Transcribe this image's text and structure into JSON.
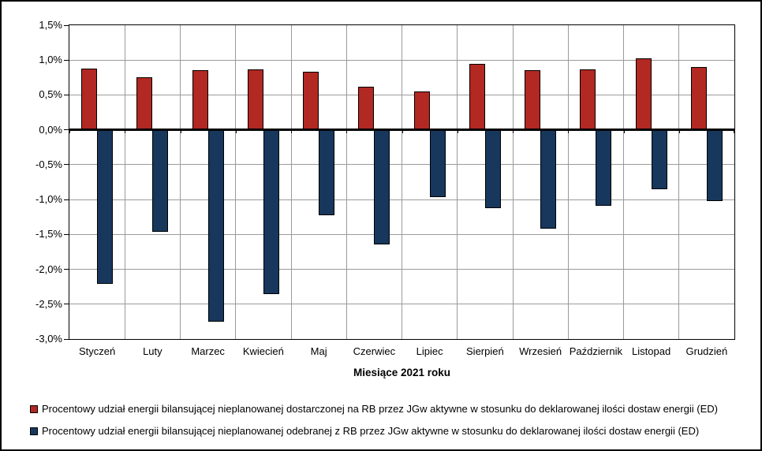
{
  "chart_data": {
    "type": "bar",
    "title": "",
    "xlabel": "Miesiące 2021 roku",
    "ylabel": "",
    "categories": [
      "Styczeń",
      "Luty",
      "Marzec",
      "Kwiecień",
      "Maj",
      "Czerwiec",
      "Lipiec",
      "Sierpień",
      "Wrzesień",
      "Październik",
      "Listopad",
      "Grudzień"
    ],
    "series": [
      {
        "name": "Procentowy udział energii bilansującej nieplanowanej dostarczonej na RB przez JGw aktywne w stosunku do deklarowanej ilości dostaw energii (ED)",
        "color": "#b22822",
        "values": [
          0.88,
          0.75,
          0.86,
          0.87,
          0.83,
          0.62,
          0.55,
          0.95,
          0.85,
          0.87,
          1.02,
          0.9
        ]
      },
      {
        "name": "Procentowy udział energii bilansującej nieplanowanej odebranej z RB przez JGw aktywne w stosunku do deklarowanej ilości dostaw energii (ED)",
        "color": "#17375d",
        "values": [
          -2.21,
          -1.46,
          -2.75,
          -2.36,
          -1.22,
          -1.64,
          -0.96,
          -1.12,
          -1.42,
          -1.09,
          -0.85,
          -1.02
        ]
      }
    ],
    "ylim": [
      -3.0,
      1.5
    ],
    "y_tick_step": 0.5,
    "y_tick_labels": [
      "1,5%",
      "1,0%",
      "0,5%",
      "0,0%",
      "-0,5%",
      "-1,0%",
      "-1,5%",
      "-2,0%",
      "-2,5%",
      "-3,0%"
    ],
    "grid": true,
    "legend_position": "bottom-left",
    "colors": {
      "gridline": "#9a9a9a",
      "axis": "#000000",
      "background": "#ffffff"
    }
  }
}
